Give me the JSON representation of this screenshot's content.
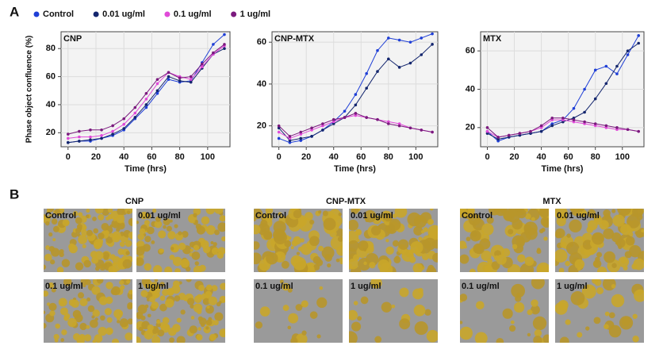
{
  "panel_labels": [
    "A",
    "B"
  ],
  "chart_data": [
    {
      "type": "line",
      "title": "CNP",
      "xlabel": "Time (hrs)",
      "ylabel": "Phase object confluence (%)",
      "x": [
        0,
        8,
        16,
        24,
        32,
        40,
        48,
        56,
        64,
        72,
        80,
        88,
        96,
        104,
        112
      ],
      "xlim": [
        -5,
        116
      ],
      "xticks": [
        0,
        20,
        40,
        60,
        80,
        100
      ],
      "ylim": [
        10,
        92
      ],
      "yticks": [
        20,
        40,
        60,
        80
      ],
      "grid": true,
      "series": [
        {
          "name": "Control",
          "color": "#1f3fd6",
          "values": [
            13,
            14,
            14,
            16,
            18,
            22,
            30,
            38,
            48,
            58,
            56,
            57,
            70,
            83,
            90
          ]
        },
        {
          "name": "0.01 ug/ml",
          "color": "#14266e",
          "values": [
            13,
            14,
            15,
            16,
            19,
            23,
            31,
            40,
            50,
            60,
            57,
            56,
            66,
            76,
            80
          ]
        },
        {
          "name": "0.1 ug/ml",
          "color": "#e04ad8",
          "values": [
            16,
            17,
            17,
            18,
            21,
            26,
            34,
            44,
            55,
            63,
            60,
            58,
            67,
            76,
            82
          ]
        },
        {
          "name": "1 ug/ml",
          "color": "#7b1a7e",
          "values": [
            19,
            21,
            22,
            22,
            25,
            30,
            38,
            48,
            58,
            63,
            59,
            60,
            69,
            77,
            83
          ]
        }
      ]
    },
    {
      "type": "line",
      "title": "CNP-MTX",
      "xlabel": "Time (hrs)",
      "x": [
        0,
        8,
        16,
        24,
        32,
        40,
        48,
        56,
        64,
        72,
        80,
        88,
        96,
        104,
        112
      ],
      "xlim": [
        -5,
        116
      ],
      "xticks": [
        0,
        20,
        40,
        60,
        80,
        100
      ],
      "ylim": [
        10,
        65
      ],
      "yticks": [
        20,
        40,
        60
      ],
      "grid": true,
      "series": [
        {
          "color": "#1f3fd6",
          "values": [
            14,
            12,
            13,
            15,
            18,
            22,
            27,
            35,
            45,
            56,
            62,
            61,
            60,
            62,
            64
          ]
        },
        {
          "color": "#14266e",
          "values": [
            19,
            13,
            14,
            15,
            18,
            21,
            24,
            30,
            38,
            46,
            52,
            48,
            50,
            54,
            59
          ]
        },
        {
          "color": "#e04ad8",
          "values": [
            17,
            14,
            16,
            18,
            20,
            22,
            24,
            25,
            24,
            23,
            22,
            21,
            19,
            18,
            17
          ]
        },
        {
          "color": "#7b1a7e",
          "values": [
            20,
            15,
            17,
            19,
            21,
            23,
            24,
            26,
            24,
            23,
            21,
            20,
            19,
            18,
            17
          ]
        }
      ]
    },
    {
      "type": "line",
      "title": "MTX",
      "xlabel": "Time (hrs)",
      "x": [
        0,
        8,
        16,
        24,
        32,
        40,
        48,
        56,
        64,
        72,
        80,
        88,
        96,
        104,
        112
      ],
      "xlim": [
        -5,
        116
      ],
      "xticks": [
        0,
        20,
        40,
        60,
        80,
        100
      ],
      "ylim": [
        10,
        70
      ],
      "yticks": [
        20,
        40,
        60
      ],
      "grid": true,
      "series": [
        {
          "color": "#1f3fd6",
          "values": [
            18,
            13,
            15,
            16,
            17,
            18,
            22,
            24,
            30,
            40,
            50,
            52,
            48,
            58,
            68
          ]
        },
        {
          "color": "#14266e",
          "values": [
            17,
            14,
            15,
            16,
            17,
            18,
            21,
            23,
            25,
            28,
            35,
            43,
            52,
            60,
            64
          ]
        },
        {
          "color": "#e04ad8",
          "values": [
            18,
            15,
            16,
            17,
            18,
            20,
            24,
            24,
            23,
            22,
            21,
            20,
            19,
            19,
            18
          ]
        },
        {
          "color": "#7b1a7e",
          "values": [
            20,
            15,
            16,
            17,
            18,
            21,
            25,
            25,
            24,
            23,
            22,
            21,
            20,
            19,
            18
          ]
        }
      ]
    }
  ],
  "micrographs": [
    {
      "title": "CNP",
      "labels": [
        "Control",
        "0.01 ug/ml",
        "0.1 ug/ml",
        "1 ug/ml"
      ]
    },
    {
      "title": "CNP-MTX",
      "labels": [
        "Control",
        "0.01 ug/ml",
        "0.1 ug/ml",
        "1 ug/ml"
      ]
    },
    {
      "title": "MTX",
      "labels": [
        "Control",
        "0.01 ug/ml",
        "0.1 ug/ml",
        "1 ug/ml"
      ]
    }
  ]
}
